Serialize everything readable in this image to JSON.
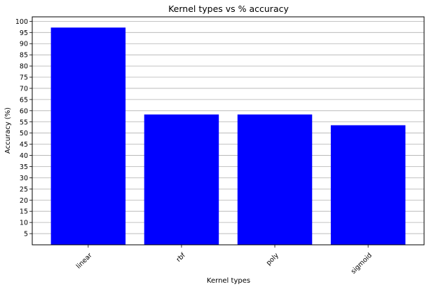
{
  "chart_data": {
    "type": "bar",
    "title": "Kernel types vs % accuracy",
    "xlabel": "Kernel types",
    "ylabel": "Accuracy (%)",
    "categories": [
      "linear",
      "rbf",
      "poly",
      "sigmoid"
    ],
    "values": [
      97.2,
      58.3,
      58.3,
      53.5
    ],
    "ylim": [
      0,
      102
    ],
    "yticks": [
      5,
      10,
      15,
      20,
      25,
      30,
      35,
      40,
      45,
      50,
      55,
      60,
      65,
      70,
      75,
      80,
      85,
      90,
      95,
      100
    ],
    "bar_color": "#0000ff",
    "grid": "horizontal",
    "xtick_rotation": 45
  }
}
